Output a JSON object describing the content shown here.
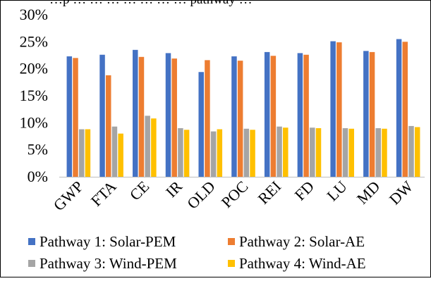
{
  "caption_fragment": "…p … … … … … … … pathway …",
  "chart_data": {
    "type": "bar",
    "categories": [
      "GWP",
      "FTA",
      "CE",
      "IR",
      "OLD",
      "POC",
      "REI",
      "FD",
      "LU",
      "MD",
      "DW"
    ],
    "series": [
      {
        "name": "Pathway 1: Solar-PEM",
        "color": "#4472C4",
        "values": [
          22.3,
          22.6,
          23.5,
          22.9,
          19.4,
          22.3,
          23.1,
          22.9,
          25.1,
          23.3,
          25.5
        ]
      },
      {
        "name": "Pathway 2: Solar-AE",
        "color": "#ED7D31",
        "values": [
          22.0,
          18.8,
          22.2,
          21.9,
          21.6,
          21.5,
          22.4,
          22.6,
          24.9,
          23.1,
          25.0
        ]
      },
      {
        "name": "Pathway 3: Wind-PEM",
        "color": "#A5A5A5",
        "values": [
          8.8,
          9.3,
          11.3,
          9.0,
          8.4,
          8.9,
          9.3,
          9.1,
          9.0,
          9.0,
          9.4
        ]
      },
      {
        "name": "Pathway 4: Wind-AE",
        "color": "#FFC000",
        "values": [
          8.8,
          8.0,
          10.8,
          8.7,
          8.8,
          8.7,
          9.1,
          9.0,
          8.9,
          8.9,
          9.2
        ]
      }
    ],
    "yticks": [
      "0%",
      "5%",
      "10%",
      "15%",
      "20%",
      "25%",
      "30%"
    ],
    "ylim": [
      0,
      30
    ],
    "xlabel": "",
    "ylabel": "",
    "grid": false,
    "legend_position": "bottom"
  }
}
